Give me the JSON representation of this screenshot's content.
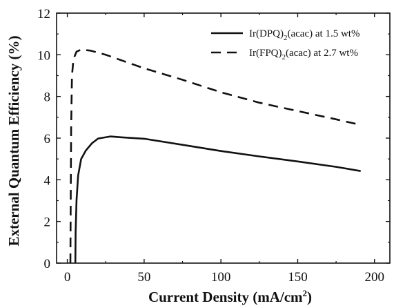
{
  "chart_data": {
    "type": "line",
    "xlabel": "Current Density (mA/cm²)",
    "xlabel_parts": {
      "main": "Current Density (mA/cm",
      "sup": "2",
      "tail": ")"
    },
    "ylabel": "External Quantum Efficiency (%)",
    "xlim": [
      -7,
      210
    ],
    "ylim": [
      0,
      12
    ],
    "x_ticks": [
      0,
      50,
      100,
      150,
      200
    ],
    "y_ticks": [
      0,
      2,
      4,
      6,
      8,
      10,
      12
    ],
    "grid": false,
    "legend_position": "top-right",
    "series": [
      {
        "name": "Ir(DPQ)2(acac) at 1.5 wt%",
        "legend_parts": {
          "pre": "Ir(DPQ)",
          "sub": "2",
          "post": "(acac) at 1.5 wt%"
        },
        "line_style": "solid",
        "color": "#111111",
        "points": [
          [
            5.2,
            0.0
          ],
          [
            5.4,
            1.5
          ],
          [
            6.0,
            3.0
          ],
          [
            7.0,
            4.2
          ],
          [
            9.0,
            5.0
          ],
          [
            12.0,
            5.4
          ],
          [
            16.0,
            5.75
          ],
          [
            20.0,
            5.98
          ],
          [
            28.0,
            6.08
          ],
          [
            35.0,
            6.04
          ],
          [
            50.0,
            5.97
          ],
          [
            75.0,
            5.68
          ],
          [
            100.0,
            5.38
          ],
          [
            125.0,
            5.12
          ],
          [
            150.0,
            4.88
          ],
          [
            175.0,
            4.62
          ],
          [
            191.0,
            4.42
          ]
        ]
      },
      {
        "name": "Ir(FPQ)2(acac) at 2.7 wt%",
        "legend_parts": {
          "pre": "Ir(FPQ)",
          "sub": "2",
          "post": "(acac) at 2.7 wt%"
        },
        "line_style": "dashed",
        "color": "#111111",
        "points": [
          [
            2.0,
            0.0
          ],
          [
            2.2,
            3.0
          ],
          [
            2.5,
            6.5
          ],
          [
            3.0,
            9.0
          ],
          [
            4.0,
            9.8
          ],
          [
            6.0,
            10.15
          ],
          [
            9.0,
            10.25
          ],
          [
            15.0,
            10.2
          ],
          [
            25.0,
            10.0
          ],
          [
            50.0,
            9.35
          ],
          [
            75.0,
            8.8
          ],
          [
            100.0,
            8.2
          ],
          [
            125.0,
            7.7
          ],
          [
            150.0,
            7.3
          ],
          [
            175.0,
            6.9
          ],
          [
            190.0,
            6.65
          ]
        ]
      }
    ]
  }
}
